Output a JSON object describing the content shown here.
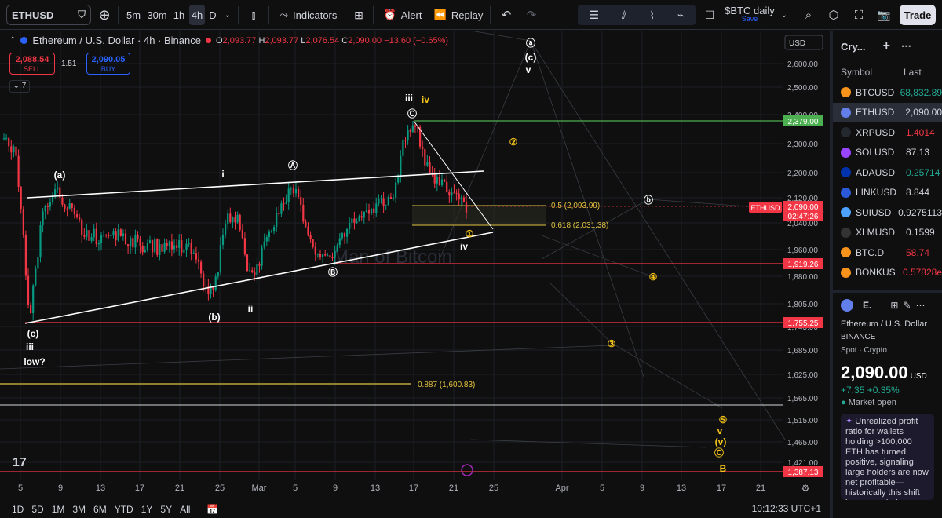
{
  "toolbar": {
    "symbol": "ETHUSD",
    "intervals": [
      "5m",
      "30m",
      "1h",
      "4h",
      "D"
    ],
    "selected_interval": "4h",
    "indicators_label": "Indicators",
    "alert_label": "Alert",
    "replay_label": "Replay",
    "layout_name": "$BTC daily",
    "layout_status": "Save",
    "trade_label": "Trade"
  },
  "legend": {
    "title": "Ethereum / U.S. Dollar · 4h · Binance",
    "o_label": "O",
    "o": "2,093.77",
    "h_label": "H",
    "h": "2,093.77",
    "l_label": "L",
    "l": "2,076.54",
    "c_label": "C",
    "c": "2,090.00",
    "change": "−13.60 (−0.65%)",
    "sell_price": "2,088.54",
    "sell_label": "SELL",
    "buy_price": "2,090.05",
    "buy_label": "BUY",
    "spread": "1.51",
    "indicator_count": "7"
  },
  "chart_data": {
    "type": "candlestick",
    "currency": "USD",
    "price_axis": [
      "2,600.00",
      "2,500.00",
      "2,400.00",
      "2,300.00",
      "2,200.00",
      "2,120.00",
      "2,040.00",
      "1,960.00",
      "1,880.00",
      "1,805.00",
      "1,745.00",
      "1,685.00",
      "1,625.00",
      "1,565.00",
      "1,515.00",
      "1,465.00",
      "1,421.00"
    ],
    "time_axis": [
      "5",
      "9",
      "13",
      "17",
      "21",
      "25",
      "Mar",
      "5",
      "9",
      "13",
      "17",
      "21",
      "25",
      "Apr",
      "5",
      "9",
      "13",
      "17",
      "21"
    ],
    "last_price_tag": {
      "symbol": "ETHUSD",
      "price": "2,090.00",
      "countdown": "02:47:26"
    },
    "levels": [
      {
        "price": "2,379.00",
        "color": "#4caf50"
      },
      {
        "price": "1,919.26",
        "color": "#f23645"
      },
      {
        "price": "1,755.25",
        "color": "#f23645"
      },
      {
        "price": "1,387.13",
        "color": "#f23645"
      }
    ],
    "fib_labels": [
      "0.5 (2,093.99)",
      "0.618 (2,031.38)",
      "0.887 (1,600.83)"
    ],
    "wave_labels_white": [
      "(a)",
      "i",
      "Ⓐ",
      "(b)",
      "ii",
      "Ⓑ",
      "iii",
      "Ⓒ",
      "iv",
      "(c)",
      "iii",
      "low?",
      "ⓐ",
      "(c)",
      "v",
      "ⓑ"
    ],
    "wave_labels_yellow": [
      "iv",
      "②",
      "①",
      "④",
      "③",
      "⑤",
      "v",
      "(v)",
      "Ⓒ",
      "B"
    ],
    "watermark": "Man of Bitcoin"
  },
  "bottom": {
    "ranges": [
      "1D",
      "5D",
      "1M",
      "3M",
      "6M",
      "YTD",
      "1Y",
      "5Y",
      "All"
    ],
    "clock": "10:12:33 UTC+1"
  },
  "watchlist": {
    "title": "Cry...",
    "col_symbol": "Symbol",
    "col_last": "Last",
    "rows": [
      {
        "sym": "BTCUSD",
        "last": "68,832.89",
        "cls": "green",
        "color": "#f7931a"
      },
      {
        "sym": "ETHUSD",
        "last": "2,090.00",
        "cls": "",
        "color": "#627eea"
      },
      {
        "sym": "XRPUSD",
        "last": "1.4014",
        "cls": "red",
        "color": "#23292f"
      },
      {
        "sym": "SOLUSD",
        "last": "87.13",
        "cls": "",
        "color": "#9945ff"
      },
      {
        "sym": "ADAUSD",
        "last": "0.25714",
        "cls": "green",
        "color": "#0033ad"
      },
      {
        "sym": "LINKUSD",
        "last": "8.844",
        "cls": "",
        "color": "#2a5ada"
      },
      {
        "sym": "SUIUSD",
        "last": "0.9275113",
        "cls": "",
        "color": "#4da2ff"
      },
      {
        "sym": "XLMUSD",
        "last": "0.1599",
        "cls": "",
        "color": "#333"
      },
      {
        "sym": "BTC.D",
        "last": "58.74",
        "cls": "red",
        "color": "#f7931a"
      },
      {
        "sym": "BONKUS",
        "last": "0.57828e",
        "cls": "red",
        "color": "#f7931a"
      }
    ]
  },
  "details": {
    "short": "E.",
    "name": "Ethereum / U.S. Dollar",
    "exchange": "BINANCE",
    "category": "Spot · Crypto",
    "price": "2,090.00",
    "currency": "USD",
    "change": "+7.35  +0.35%",
    "market_status": "Market open",
    "news": "Unrealized profit ratio for wallets holding >100,000 ETH has turned positive, signaling large holders are now net profitable—historically this shift has preceded on-chain-driven ETHUSD"
  }
}
